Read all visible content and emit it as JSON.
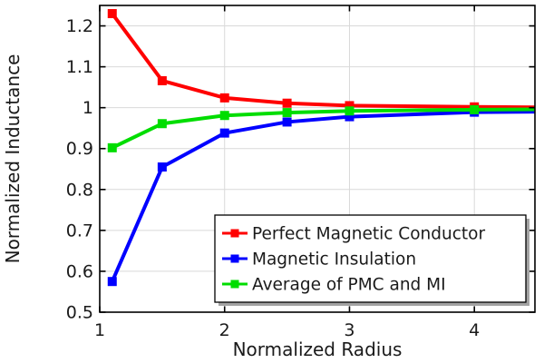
{
  "chart_data": {
    "type": "line",
    "title": "",
    "xlabel": "Normalized Radius",
    "ylabel": "Normalized Inductance",
    "xlim": [
      1,
      4.485
    ],
    "ylim": [
      0.5,
      1.25
    ],
    "x_ticks": [
      1,
      2,
      3,
      4
    ],
    "x_tick_labels": [
      "1",
      "2",
      "3",
      "4"
    ],
    "y_ticks": [
      0.5,
      0.6,
      0.7,
      0.8,
      0.9,
      1.0,
      1.1,
      1.2
    ],
    "y_tick_labels": [
      "0.5",
      "0.6",
      "0.7",
      "0.8",
      "0.9",
      "1",
      "1.1",
      "1.2"
    ],
    "grid": true,
    "legend_position": "inside-lower-right",
    "colors": {
      "background": "#ffffff",
      "grid": "#d9d9d9",
      "axis": "#000000",
      "tick_text": "#1a1a1a",
      "legend_border": "#000000",
      "legend_fill": "#ffffff",
      "legend_shadow": "#a3a3a3"
    },
    "series": [
      {
        "name": "Perfect Magnetic Conductor",
        "color": "#ff0000",
        "marker": "square",
        "x": [
          1.1,
          1.5,
          2.0,
          2.5,
          3.0,
          4.0,
          4.485
        ],
        "y": [
          1.23,
          1.066,
          1.024,
          1.011,
          1.005,
          1.002,
          1.001
        ],
        "markers_through": 6
      },
      {
        "name": "Magnetic Insulation",
        "color": "#0000ff",
        "marker": "square",
        "x": [
          1.1,
          1.5,
          2.0,
          2.5,
          3.0,
          4.0,
          4.485
        ],
        "y": [
          0.575,
          0.855,
          0.938,
          0.965,
          0.978,
          0.989,
          0.99
        ],
        "markers_through": 6
      },
      {
        "name": "Average of PMC and MI",
        "color": "#00dd00",
        "marker": "square",
        "x": [
          1.1,
          1.5,
          2.0,
          2.5,
          3.0,
          4.0,
          4.485
        ],
        "y": [
          0.902,
          0.961,
          0.981,
          0.988,
          0.992,
          0.995,
          0.996
        ],
        "markers_through": 6
      }
    ]
  }
}
